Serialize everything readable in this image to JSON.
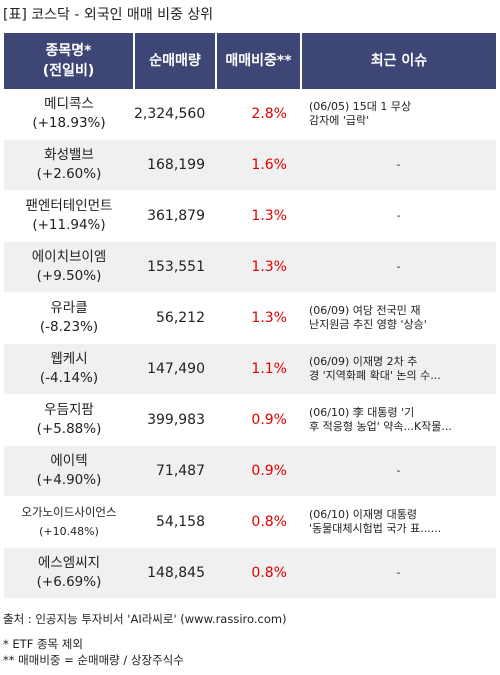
{
  "title": "[표] 코스닥 - 외국인 매매 비중 상위",
  "headers": {
    "name_line1": "종목명*",
    "name_line2": "(전일비)",
    "volume": "순매매량",
    "ratio": "매매비중**",
    "issue": "최근 이슈"
  },
  "rows": [
    {
      "name": "메디콕스",
      "change": "(+18.93%)",
      "volume": "2,324,560",
      "ratio": "2.8%",
      "issue1": "(06/05) 15대 1 무상",
      "issue2": "감자에 '급락'"
    },
    {
      "name": "화성밸브",
      "change": "(+2.60%)",
      "volume": "168,199",
      "ratio": "1.6%",
      "issue1": "-",
      "issue2": ""
    },
    {
      "name": "팬엔터테인먼트",
      "change": "(+11.94%)",
      "volume": "361,879",
      "ratio": "1.3%",
      "issue1": "-",
      "issue2": ""
    },
    {
      "name": "에이치브이엠",
      "change": "(+9.50%)",
      "volume": "153,551",
      "ratio": "1.3%",
      "issue1": "-",
      "issue2": ""
    },
    {
      "name": "유라클",
      "change": "(-8.23%)",
      "volume": "56,212",
      "ratio": "1.3%",
      "issue1": "(06/09) 여당 전국민 재",
      "issue2": "난지원금 추진 영향 '상승'"
    },
    {
      "name": "웹케시",
      "change": "(-4.14%)",
      "volume": "147,490",
      "ratio": "1.1%",
      "issue1": "(06/09) 이재명 2차 추",
      "issue2": "경 '지역화폐 확대' 논의 수..."
    },
    {
      "name": "우듬지팜",
      "change": "(+5.88%)",
      "volume": "399,983",
      "ratio": "0.9%",
      "issue1": "(06/10) 李 대통령 '기",
      "issue2": "후 적응형 농업' 약속...K작물..."
    },
    {
      "name": "에이텍",
      "change": "(+4.90%)",
      "volume": "71,487",
      "ratio": "0.9%",
      "issue1": "-",
      "issue2": ""
    },
    {
      "name": "오가노이드사이언스",
      "change": "(+10.48%)",
      "volume": "54,158",
      "ratio": "0.8%",
      "issue1": "(06/10) 이재명 대통령",
      "issue2": "'동물대체시험법 국가 표......"
    },
    {
      "name": "에스엠씨지",
      "change": "(+6.69%)",
      "volume": "148,845",
      "ratio": "0.8%",
      "issue1": "-",
      "issue2": ""
    }
  ],
  "footer": {
    "source": "출처 : 인공지능 투자비서 'AI라씨로' (www.rassiro.com)",
    "note1": "* ETF 종목 제외",
    "note2": "** 매매비중 = 순매매량 / 상장주식수"
  },
  "colors": {
    "header_bg": "#3d4675",
    "ratio_text": "#e00000",
    "even_row_bg": "#f0f0f0"
  }
}
